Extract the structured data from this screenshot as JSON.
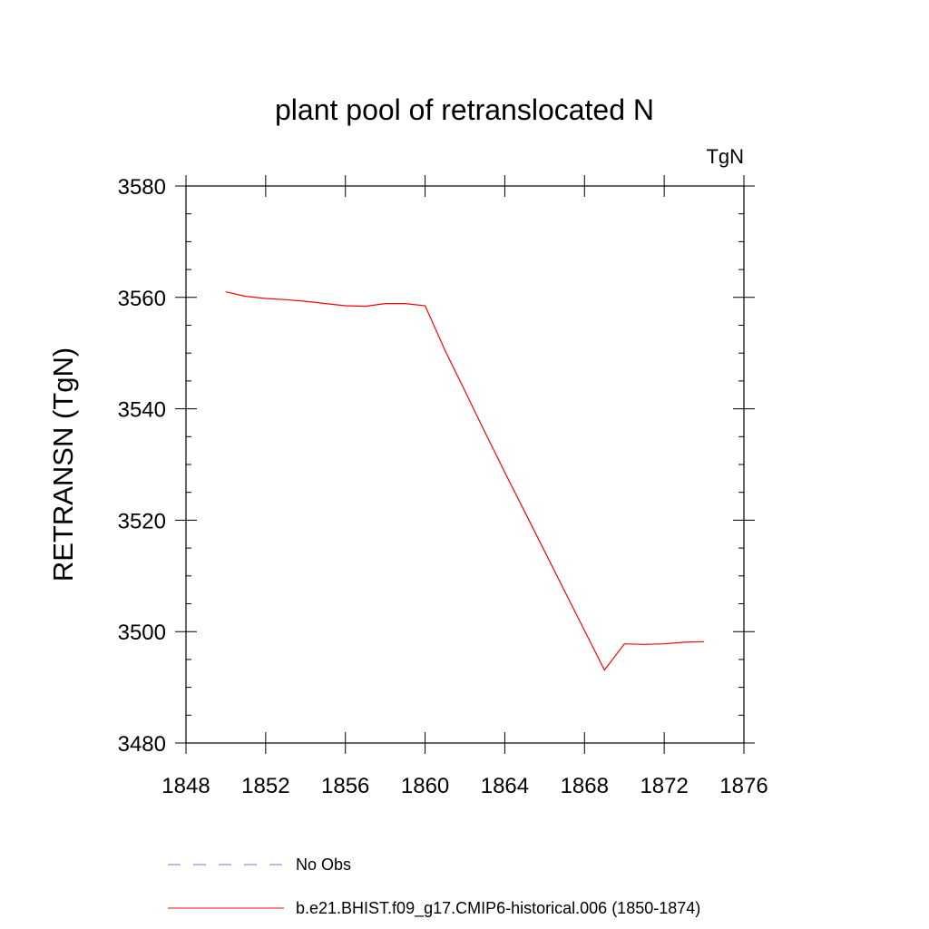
{
  "chart_data": {
    "type": "line",
    "title": "plant pool of retranslocated N",
    "units_label": "TgN",
    "ylabel": "RETRANSN  (TgN)",
    "xlabel": "",
    "xlim": [
      1848,
      1876
    ],
    "ylim": [
      3480,
      3580
    ],
    "x_ticks": [
      1848,
      1852,
      1856,
      1860,
      1864,
      1868,
      1872,
      1876
    ],
    "y_ticks": [
      3480,
      3500,
      3520,
      3540,
      3560,
      3580
    ],
    "x_tick_labels": [
      "1848",
      "1852",
      "1856",
      "1860",
      "1864",
      "1868",
      "1872",
      "1876"
    ],
    "y_tick_labels": [
      "3480",
      "3500",
      "3520",
      "3540",
      "3560",
      "3580"
    ],
    "grid": false,
    "legend_position": "bottom",
    "series": [
      {
        "name": "b.e21.BHIST.f09_g17.CMIP6-historical.006 (1850-1874)",
        "color": "#ff0000",
        "style": "solid",
        "x": [
          1850,
          1851,
          1852,
          1853,
          1854,
          1855,
          1856,
          1857,
          1858,
          1859,
          1860,
          1861,
          1862,
          1863,
          1864,
          1865,
          1866,
          1867,
          1868,
          1869,
          1870,
          1871,
          1872,
          1873,
          1874
        ],
        "y": [
          3561.0,
          3560.2,
          3559.8,
          3559.6,
          3559.3,
          3558.9,
          3558.5,
          3558.4,
          3558.9,
          3558.9,
          3558.5,
          3550.5,
          3543.2,
          3535.8,
          3528.6,
          3521.5,
          3514.4,
          3507.3,
          3500.2,
          3493.1,
          3497.8,
          3497.7,
          3497.8,
          3498.1,
          3498.2
        ]
      },
      {
        "name": "No Obs",
        "color": "#7d6fd0",
        "style": "dashed",
        "x": [],
        "y": []
      }
    ]
  }
}
